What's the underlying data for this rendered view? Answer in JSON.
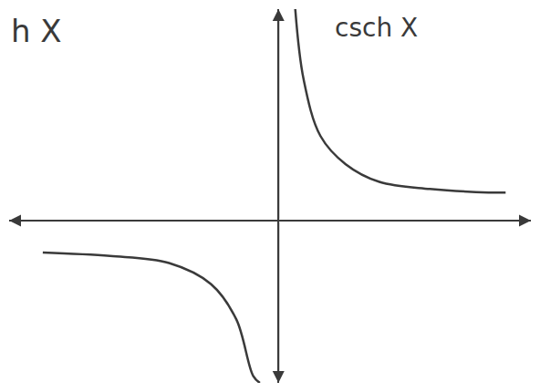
{
  "chart_data": {
    "type": "line",
    "title": "csch X",
    "annotations": [
      "h X"
    ],
    "x": [
      -2.8,
      -2.0,
      -1.3,
      -0.8,
      -0.5,
      -0.3,
      -0.22,
      0,
      0.2,
      0.3,
      0.5,
      0.8,
      1.2,
      1.8,
      2.5,
      2.7
    ],
    "values": [
      -0.45,
      -0.5,
      -0.6,
      -0.9,
      -1.4,
      -2.2,
      -2.3,
      null,
      3,
      2.0,
      1.2,
      0.8,
      0.55,
      0.45,
      0.4,
      0.4
    ],
    "xlim": [
      -3.2,
      3
    ],
    "ylim": [
      -2.3,
      3
    ],
    "xticks": [],
    "yticks": [],
    "tick_labels": false,
    "grid": false,
    "color": "#3a3a3a"
  }
}
